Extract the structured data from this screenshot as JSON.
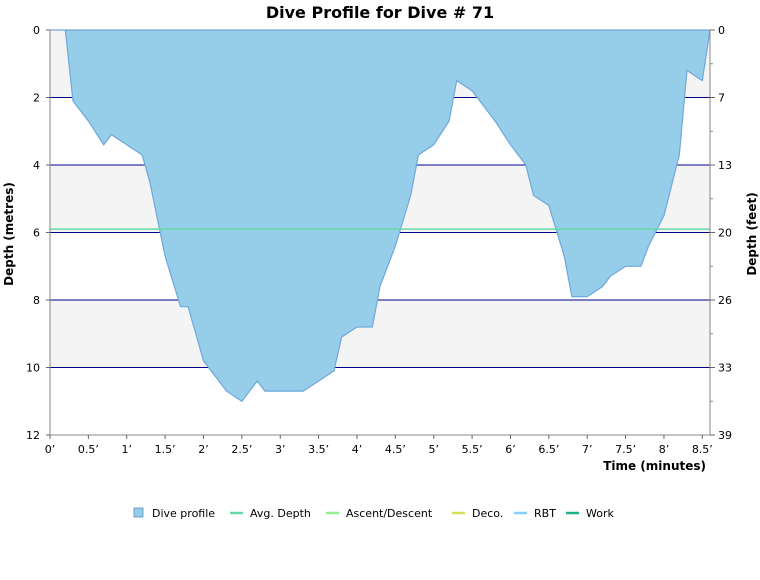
{
  "chart_data": {
    "type": "area",
    "title": "Dive Profile for Dive # 71",
    "xlabel": "Time (minutes)",
    "ylabel_left": "Depth (metres)",
    "ylabel_right": "Depth (feet)",
    "x_range": [
      0,
      8.6
    ],
    "y_left_range": [
      0,
      12
    ],
    "y_left_reversed": true,
    "x_ticks": [
      "0’",
      "0.5’",
      "1’",
      "1.5’",
      "2’",
      "2.5’",
      "3’",
      "3.5’",
      "4’",
      "4.5’",
      "5’",
      "5.5’",
      "6’",
      "6.5’",
      "7’",
      "7.5’",
      "8’",
      "8.5’"
    ],
    "x_tick_values": [
      0,
      0.5,
      1,
      1.5,
      2,
      2.5,
      3,
      3.5,
      4,
      4.5,
      5,
      5.5,
      6,
      6.5,
      7,
      7.5,
      8,
      8.5
    ],
    "y_left_ticks": [
      "0",
      "2",
      "4",
      "6",
      "8",
      "10",
      "12"
    ],
    "y_left_tick_values": [
      0,
      2,
      4,
      6,
      8,
      10,
      12
    ],
    "y_right_ticks": [
      "0",
      "7",
      "13",
      "20",
      "26",
      "33",
      "39"
    ],
    "y_right_tick_values_m": [
      0,
      2,
      4,
      6,
      8,
      10,
      12
    ],
    "y_right_minor_m": [
      1,
      3,
      5,
      7,
      9,
      11
    ],
    "grid": true,
    "legend_placement": "bottom",
    "colors": {
      "dive_fill": "#96cde9",
      "dive_line": "#6fa8dc",
      "avg_depth": "#66d9a6",
      "ascent": "#90ee90",
      "deco": "#d4e157",
      "rbt": "#87cefa",
      "work": "#20b08a",
      "band": "#f4f4f4",
      "gridline": "#00008b"
    },
    "avg_depth": 5.9,
    "series": [
      {
        "name": "Dive profile",
        "points": [
          [
            0,
            0
          ],
          [
            0.2,
            0
          ],
          [
            0.3,
            2.1
          ],
          [
            0.5,
            2.7
          ],
          [
            0.7,
            3.4
          ],
          [
            0.8,
            3.1
          ],
          [
            1.0,
            3.4
          ],
          [
            1.2,
            3.7
          ],
          [
            1.3,
            4.5
          ],
          [
            1.5,
            6.7
          ],
          [
            1.7,
            8.2
          ],
          [
            1.8,
            8.2
          ],
          [
            2.0,
            9.8
          ],
          [
            2.3,
            10.7
          ],
          [
            2.5,
            11.0
          ],
          [
            2.7,
            10.4
          ],
          [
            2.8,
            10.7
          ],
          [
            3.3,
            10.7
          ],
          [
            3.7,
            10.1
          ],
          [
            3.8,
            9.1
          ],
          [
            4.0,
            8.8
          ],
          [
            4.2,
            8.8
          ],
          [
            4.3,
            7.6
          ],
          [
            4.5,
            6.4
          ],
          [
            4.7,
            4.9
          ],
          [
            4.8,
            3.7
          ],
          [
            5.0,
            3.4
          ],
          [
            5.2,
            2.7
          ],
          [
            5.3,
            1.5
          ],
          [
            5.5,
            1.8
          ],
          [
            5.8,
            2.7
          ],
          [
            6.0,
            3.4
          ],
          [
            6.2,
            4.0
          ],
          [
            6.3,
            4.9
          ],
          [
            6.5,
            5.2
          ],
          [
            6.7,
            6.7
          ],
          [
            6.8,
            7.9
          ],
          [
            7.0,
            7.9
          ],
          [
            7.2,
            7.6
          ],
          [
            7.3,
            7.3
          ],
          [
            7.5,
            7.0
          ],
          [
            7.7,
            7.0
          ],
          [
            7.8,
            6.4
          ],
          [
            8.0,
            5.5
          ],
          [
            8.2,
            3.7
          ],
          [
            8.3,
            1.2
          ],
          [
            8.5,
            1.5
          ],
          [
            8.6,
            0
          ]
        ]
      }
    ],
    "legend": [
      {
        "name": "Dive profile",
        "kind": "box",
        "color": "#96cde9"
      },
      {
        "name": "Avg. Depth",
        "kind": "line",
        "color": "#66d9a6"
      },
      {
        "name": "Ascent/Descent",
        "kind": "line",
        "color": "#90ee90"
      },
      {
        "name": "Deco.",
        "kind": "line",
        "color": "#d4e157"
      },
      {
        "name": "RBT",
        "kind": "line",
        "color": "#87cefa"
      },
      {
        "name": "Work",
        "kind": "line",
        "color": "#20b08a"
      }
    ]
  }
}
